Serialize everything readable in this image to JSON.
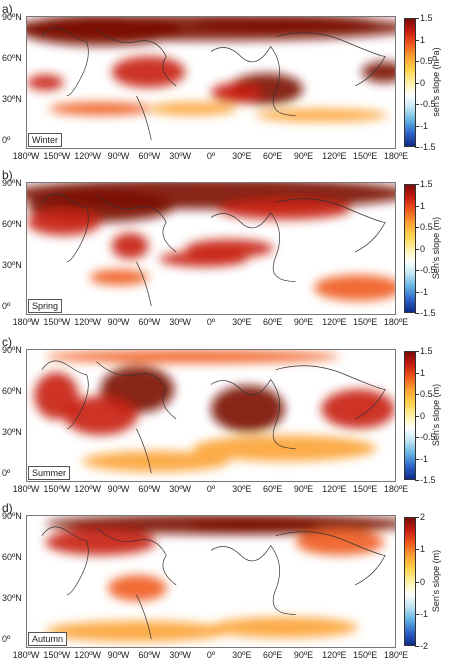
{
  "colorscale": [
    "#0b2a86",
    "#2f63c7",
    "#64b3e3",
    "#bfe4f2",
    "#ffffff",
    "#fff1a6",
    "#ffd24a",
    "#fca233",
    "#ef5b1e",
    "#c81d11",
    "#7a0c07"
  ],
  "longitude_ticks": [
    "180ºW",
    "150ºW",
    "120ºW",
    "90ºW",
    "60ºW",
    "30ºW",
    "0º",
    "30ºE",
    "60ºE",
    "90ºE",
    "120ºE",
    "150ºE",
    "180ºE"
  ],
  "latitude_ticks": [
    "90ºN",
    "60ºN",
    "30ºN",
    "0º"
  ],
  "panels": [
    {
      "letter": "a)",
      "season": "Winter",
      "cbar_label": "sen's slope (hPa)",
      "cbar_ticks": [
        "1.5",
        "1",
        "0.5",
        "0",
        "-0.5",
        "-1",
        "-1.5"
      ],
      "cbar_range": [
        -1.5,
        1.5
      ],
      "lat_labels": [
        "90ºN",
        "60ºN",
        "30ºN",
        "0º"
      ]
    },
    {
      "letter": "b)",
      "season": "Spring",
      "cbar_label": "Sen's slope (m)",
      "cbar_ticks": [
        "1.5",
        "1",
        "0.5",
        "0",
        "-0.5",
        "-1",
        "-1.5"
      ],
      "cbar_range": [
        -1.5,
        1.5
      ],
      "lat_labels": [
        "90ºN",
        "60ºN",
        "30ºN",
        "0º"
      ]
    },
    {
      "letter": "c)",
      "season": "Summer",
      "cbar_label": "Sen's slope (m)",
      "cbar_ticks": [
        "1.5",
        "1",
        "0.5",
        "0",
        "-0.5",
        "-1",
        "-1.5"
      ],
      "cbar_range": [
        -1.5,
        1.5
      ],
      "lat_labels": [
        "90ºN",
        "60ºN",
        "30ºN",
        "0º"
      ]
    },
    {
      "letter": "d)",
      "season": "Autumn",
      "cbar_label": "Sen's slope (m)",
      "cbar_ticks": [
        "2",
        "1",
        "0",
        "-1",
        "-2"
      ],
      "cbar_range": [
        -2,
        2
      ],
      "lat_labels": [
        "90ºN",
        "60ºN",
        "30ºN",
        "0º"
      ]
    }
  ]
}
